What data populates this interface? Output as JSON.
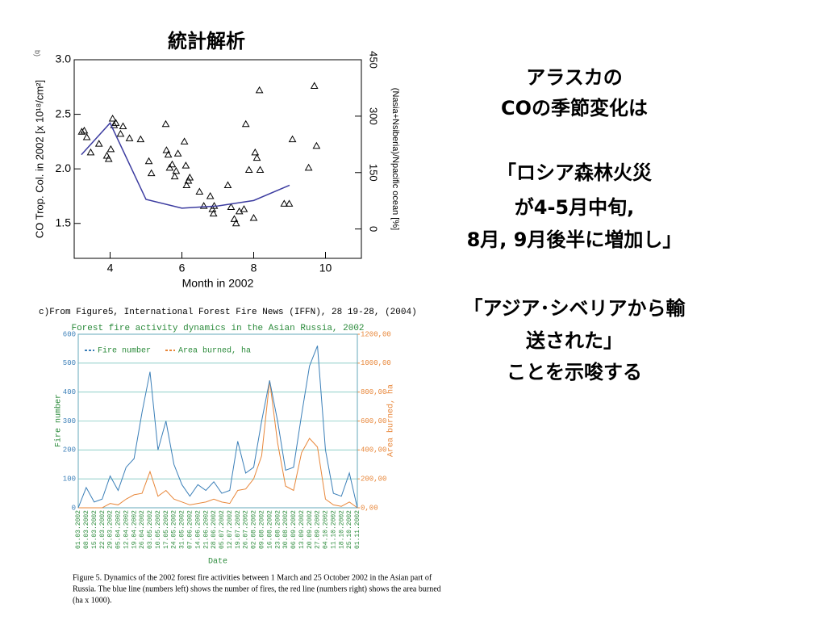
{
  "slide": {
    "title": "統計解析",
    "panel_label": "b)",
    "text_blocks": [
      [
        "アラスカの",
        "COの季節変化は"
      ],
      [
        "「ロシア森林火災",
        "が4-5月中旬,",
        "8月, 9月後半に増加し」"
      ],
      [
        "「アジア･シベリアから輸",
        "送された」",
        "ことを示唆する"
      ]
    ],
    "source": "c)From Figure5, International Forest Fire News (IFFN), 28 19-28, (2004)",
    "caption": [
      "Figure 5. Dynamics of the 2002 forest fire activities between 1 March and 25 October 2002 in the Asian part of",
      "Russia. The blue line (numbers left) shows the number of fires, the red line (numbers right) shows the area burned",
      "(ha x 1000)."
    ]
  },
  "chart_data": [
    {
      "type": "scatter",
      "xlabel": "Month in 2002",
      "ylabel": "CO Trop. Col. in 2002 [x 10¹⁸/cm²]",
      "y2label": "(Nasia+Nsiberia)/Npacific ocean [%]",
      "xlim": [
        3.0,
        11.0
      ],
      "xticks": [
        4,
        6,
        8,
        10
      ],
      "ylim": [
        1.18,
        3.0
      ],
      "yticks": [
        {
          "value": 1.5,
          "label": "1.5"
        },
        {
          "value": 2,
          "label": "2.0"
        },
        {
          "value": 2.5,
          "label": "2.5"
        },
        {
          "value": 3,
          "label": "3.0"
        }
      ],
      "y2lim": [
        -78,
        450
      ],
      "y2ticks": [
        0,
        150,
        300,
        450
      ],
      "series": [
        {
          "marker": "triangle",
          "color": "#000000",
          "x": [
            3.21,
            3.28,
            3.35,
            3.46,
            3.69,
            3.91,
            3.96,
            4.02,
            4.07,
            4.11,
            4.16,
            4.29,
            4.36,
            4.54,
            4.85,
            5.08,
            5.15,
            5.55,
            5.57,
            5.62,
            5.66,
            5.73,
            5.8,
            5.84,
            5.89,
            6.07,
            6.11,
            6.13,
            6.18,
            6.22,
            6.49,
            6.61,
            6.79,
            6.85,
            6.88,
            6.9,
            7.28,
            7.37,
            7.46,
            7.51,
            7.6,
            7.73,
            7.78,
            7.87,
            8.0,
            8.04,
            8.09,
            8.16,
            8.18,
            8.85,
            8.99,
            9.08,
            9.53,
            9.69,
            9.75
          ],
          "values": [
            2.34,
            2.35,
            2.29,
            2.15,
            2.23,
            2.12,
            2.09,
            2.18,
            2.46,
            2.4,
            2.42,
            2.32,
            2.39,
            2.28,
            2.27,
            2.07,
            1.96,
            2.41,
            2.17,
            2.13,
            2.01,
            2.04,
            1.93,
            1.98,
            2.14,
            2.25,
            2.03,
            1.85,
            1.89,
            1.92,
            1.79,
            1.66,
            1.75,
            1.63,
            1.59,
            1.66,
            1.85,
            1.65,
            1.54,
            1.5,
            1.61,
            1.63,
            2.41,
            1.99,
            1.55,
            2.15,
            2.1,
            2.72,
            1.99,
            1.68,
            1.68,
            2.27,
            2.01,
            2.76,
            2.21
          ]
        },
        {
          "marker": "line",
          "color": "#3c3ca0",
          "x": [
            3.2,
            4.0,
            5.0,
            6.0,
            7.0,
            8.0,
            9.0
          ],
          "values": [
            2.13,
            2.42,
            1.72,
            1.64,
            1.66,
            1.71,
            1.85
          ]
        }
      ]
    },
    {
      "type": "line",
      "title": "Forest fire activity dynamics in the Asian Russia, 2002",
      "xlabel": "Date",
      "ylabel": "Fire number",
      "y2label": "Area burned, ha",
      "categories": [
        "01.03.2002",
        "08.03.2002",
        "15.03.2002",
        "22.03.2002",
        "29.03.2002",
        "05.04.2002",
        "12.04.2002",
        "19.04.2002",
        "26.04.2002",
        "03.05.2002",
        "10.05.2002",
        "17.05.2002",
        "24.05.2002",
        "31.05.2002",
        "07.06.2002",
        "14.06.2002",
        "21.06.2002",
        "28.06.2002",
        "05.07.2002",
        "12.07.2002",
        "19.07.2002",
        "26.07.2002",
        "02.08.2002",
        "09.08.2002",
        "16.08.2002",
        "23.08.2002",
        "30.08.2002",
        "06.09.2002",
        "13.09.2002",
        "20.09.2002",
        "27.09.2002",
        "04.10.2002",
        "11.10.2002",
        "18.10.2002",
        "25.10.2002",
        "01.11.2002"
      ],
      "ylim": [
        0,
        600
      ],
      "yticks": [
        0,
        100,
        200,
        300,
        400,
        500,
        600
      ],
      "y2lim": [
        0,
        1200
      ],
      "y2ticks": [
        {
          "value": 0,
          "label": "0,00"
        },
        {
          "value": 200,
          "label": "200,00"
        },
        {
          "value": 400,
          "label": "400,00"
        },
        {
          "value": 600,
          "label": "600,00"
        },
        {
          "value": 800,
          "label": "800,00"
        },
        {
          "value": 1000,
          "label": "1000,00"
        },
        {
          "value": 1200,
          "label": "1200,00"
        }
      ],
      "grid": true,
      "legend": "upper left",
      "series": [
        {
          "name": "Fire number",
          "color": "#3b7fb8",
          "values": [
            0,
            70,
            20,
            30,
            110,
            60,
            140,
            170,
            330,
            470,
            200,
            300,
            150,
            80,
            40,
            80,
            60,
            90,
            50,
            60,
            230,
            120,
            140,
            300,
            440,
            300,
            130,
            140,
            320,
            490,
            560,
            200,
            50,
            40,
            120,
            0
          ]
        },
        {
          "name": "Area burned, ha",
          "color": "#e8873a",
          "axis": "y2",
          "values": [
            0,
            0,
            0,
            0,
            30,
            20,
            60,
            90,
            100,
            250,
            80,
            120,
            60,
            40,
            20,
            30,
            40,
            60,
            40,
            30,
            120,
            130,
            200,
            360,
            880,
            450,
            150,
            120,
            380,
            480,
            420,
            60,
            20,
            10,
            40,
            0
          ]
        }
      ]
    }
  ]
}
